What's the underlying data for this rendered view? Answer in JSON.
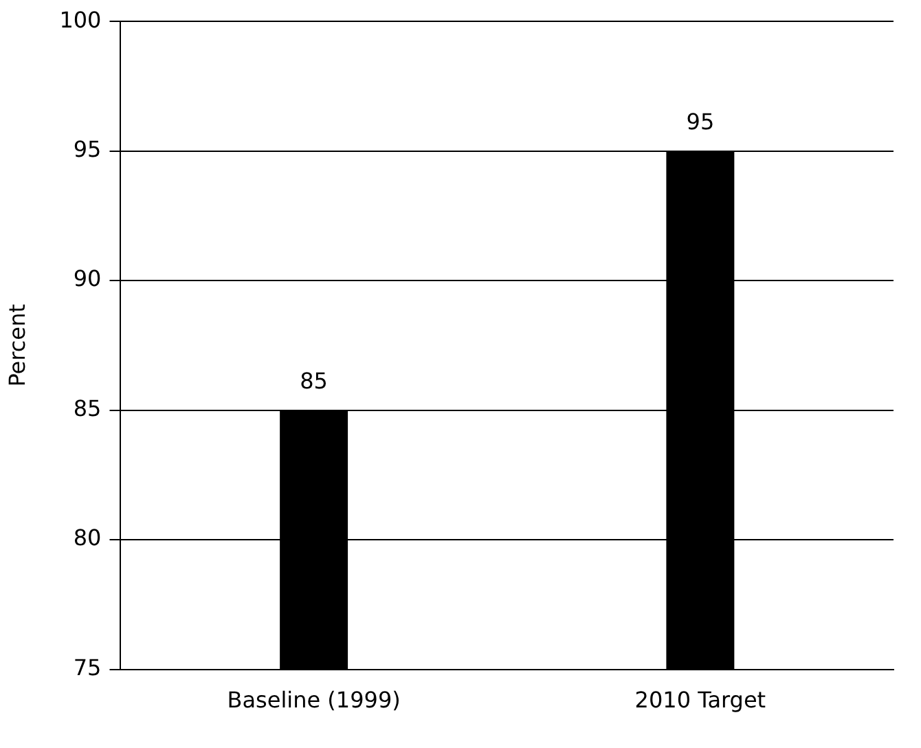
{
  "chart_data": {
    "type": "bar",
    "ylabel": "Percent",
    "categories": [
      "Baseline (1999)",
      "2010 Target"
    ],
    "values": [
      85,
      95
    ],
    "color": "#000000",
    "ylim": [
      75,
      100
    ],
    "yticks": [
      75,
      80,
      85,
      90,
      95,
      100
    ],
    "grid": "y",
    "data_labels": true,
    "legend": false
  }
}
